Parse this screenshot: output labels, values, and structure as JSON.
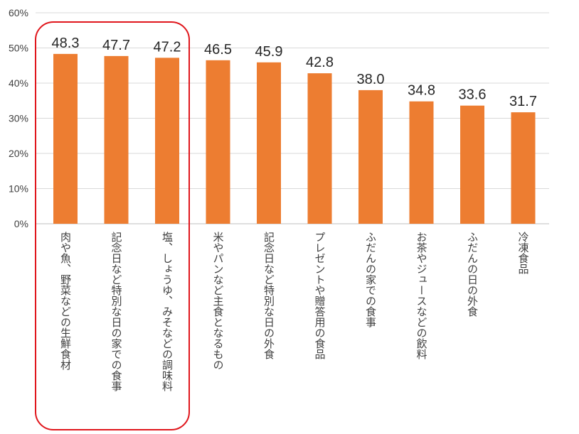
{
  "chart_data": {
    "type": "bar",
    "title": "",
    "xlabel": "",
    "ylabel": "",
    "ylim": [
      0,
      60
    ],
    "yticks": [
      0,
      10,
      20,
      30,
      40,
      50,
      60
    ],
    "ytick_labels": [
      "0%",
      "10%",
      "20%",
      "30%",
      "40%",
      "50%",
      "60%"
    ],
    "grid": true,
    "bar_color": "#ed7d31",
    "highlight_color": "#e0161c",
    "highlighted_categories": [
      0,
      1,
      2
    ],
    "categories": [
      "肉や魚、野菜などの生鮮食材",
      "記念日など特別な日の家での食事",
      "塩、しょうゆ、みそなどの調味料",
      "米やパンなど主食となるもの",
      "記念日など特別な日の外食",
      "プレゼントや贈答用の食品",
      "ふだんの家での食事",
      "お茶やジュースなどの飲料",
      "ふだんの日の外食",
      "冷凍食品"
    ],
    "values": [
      48.3,
      47.7,
      47.2,
      46.5,
      45.9,
      42.8,
      38.0,
      34.8,
      33.6,
      31.7
    ],
    "value_labels": [
      "48.3",
      "47.7",
      "47.2",
      "46.5",
      "45.9",
      "42.8",
      "38.0",
      "34.8",
      "33.6",
      "31.7"
    ]
  }
}
